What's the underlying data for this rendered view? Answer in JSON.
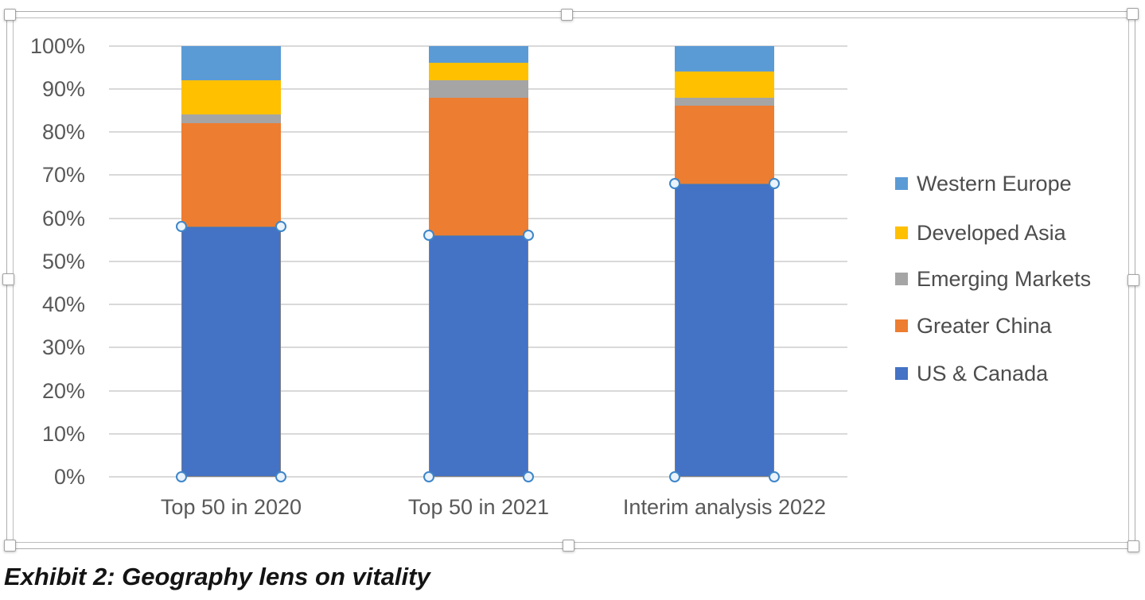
{
  "chart_data": {
    "type": "bar",
    "variant": "100-percent-stacked-column",
    "title": "",
    "categories": [
      "Top 50 in 2020",
      "Top 50 in 2021",
      "Interim analysis 2022"
    ],
    "series": [
      {
        "name": "US & Canada",
        "color": "#4472C4",
        "values": [
          58,
          56,
          68
        ]
      },
      {
        "name": "Greater China",
        "color": "#ED7D31",
        "values": [
          24,
          32,
          18
        ]
      },
      {
        "name": "Emerging Markets",
        "color": "#A5A5A5",
        "values": [
          2,
          4,
          2
        ]
      },
      {
        "name": "Developed Asia",
        "color": "#FFC000",
        "values": [
          8,
          4,
          6
        ]
      },
      {
        "name": "Western Europe",
        "color": "#5B9BD5",
        "values": [
          8,
          4,
          6
        ]
      }
    ],
    "y_ticks": [
      "100%",
      "90%",
      "80%",
      "70%",
      "60%",
      "50%",
      "40%",
      "30%",
      "20%",
      "10%",
      "0%"
    ],
    "ylim": [
      0,
      100
    ],
    "grid": true,
    "legend_position": "right",
    "legend_order": [
      "Western Europe",
      "Developed Asia",
      "Emerging Markets",
      "Greater China",
      "US & Canada"
    ]
  },
  "selection": {
    "selected_series": "US & Canada",
    "point_handle_ring_color": "#3E86C9",
    "point_handle_fill_color": "#EAF3FC"
  },
  "ui": {
    "gridline_color": "#D9D9D9",
    "axis_text_color": "#595959",
    "legend_text_color": "#4D4D4D",
    "frame_color": "#ADADAD"
  },
  "caption": {
    "text": "Exhibit 2: Geography lens on vitality"
  }
}
